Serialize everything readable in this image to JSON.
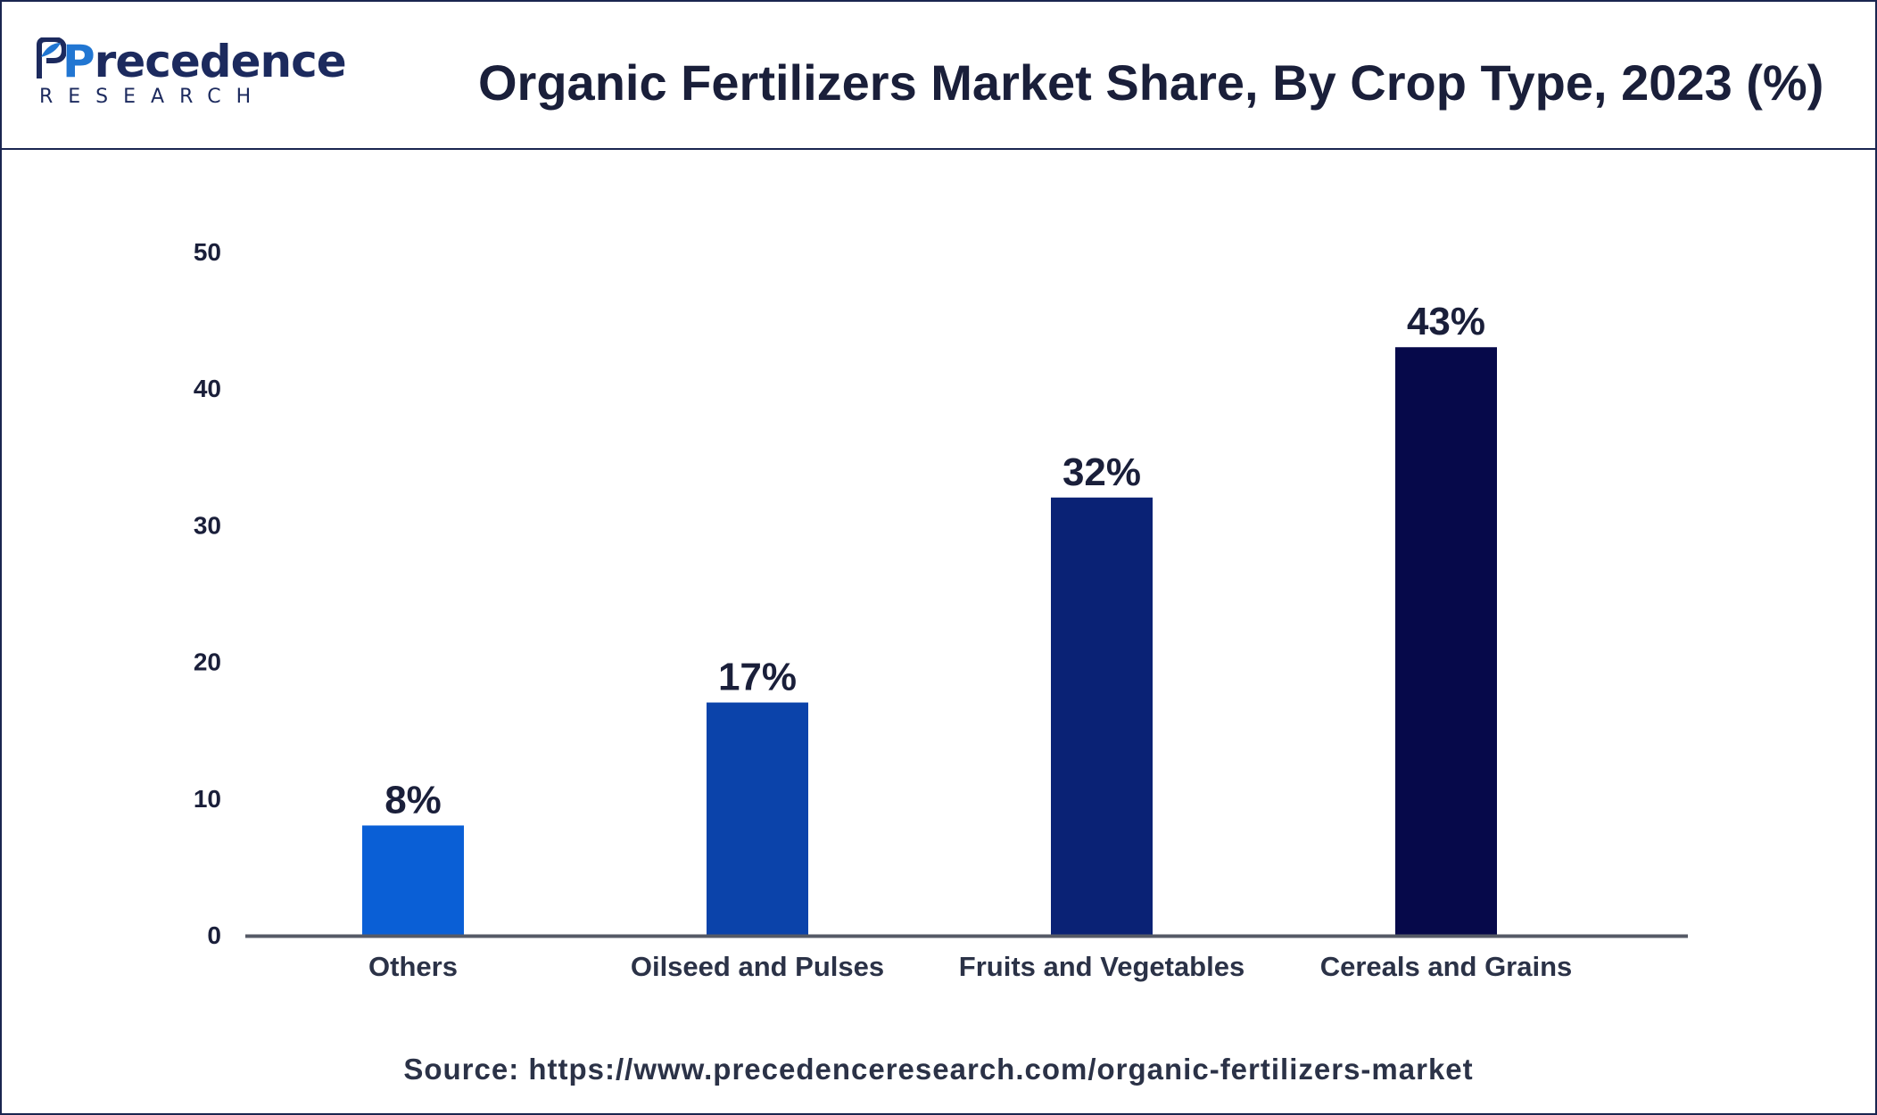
{
  "logo": {
    "word_first": "P",
    "word_rest": "recedence",
    "sub": "RESEARCH"
  },
  "header": {
    "title": "Organic Fertilizers Market Share, By Crop Type, 2023 (%)"
  },
  "footer": {
    "source": "Source: https://www.precedenceresearch.com/organic-fertilizers-market"
  },
  "colors": {
    "frame": "#1a2550",
    "axis": "#555a66",
    "text": "#1a1f3a",
    "bars": [
      "#0a5fd6",
      "#0b43aa",
      "#0a2275",
      "#06094a"
    ]
  },
  "chart_data": {
    "type": "bar",
    "title": "Organic Fertilizers Market Share, By Crop Type, 2023 (%)",
    "xlabel": "",
    "ylabel": "",
    "categories": [
      "Others",
      "Oilseed and Pulses",
      "Fruits and Vegetables",
      "Cereals and Grains"
    ],
    "values": [
      8,
      17,
      32,
      43
    ],
    "data_labels": [
      "8%",
      "17%",
      "32%",
      "43%"
    ],
    "ylim": [
      0,
      50
    ],
    "yticks": [
      0,
      10,
      20,
      30,
      40,
      50
    ],
    "grid": false,
    "legend": "none"
  }
}
